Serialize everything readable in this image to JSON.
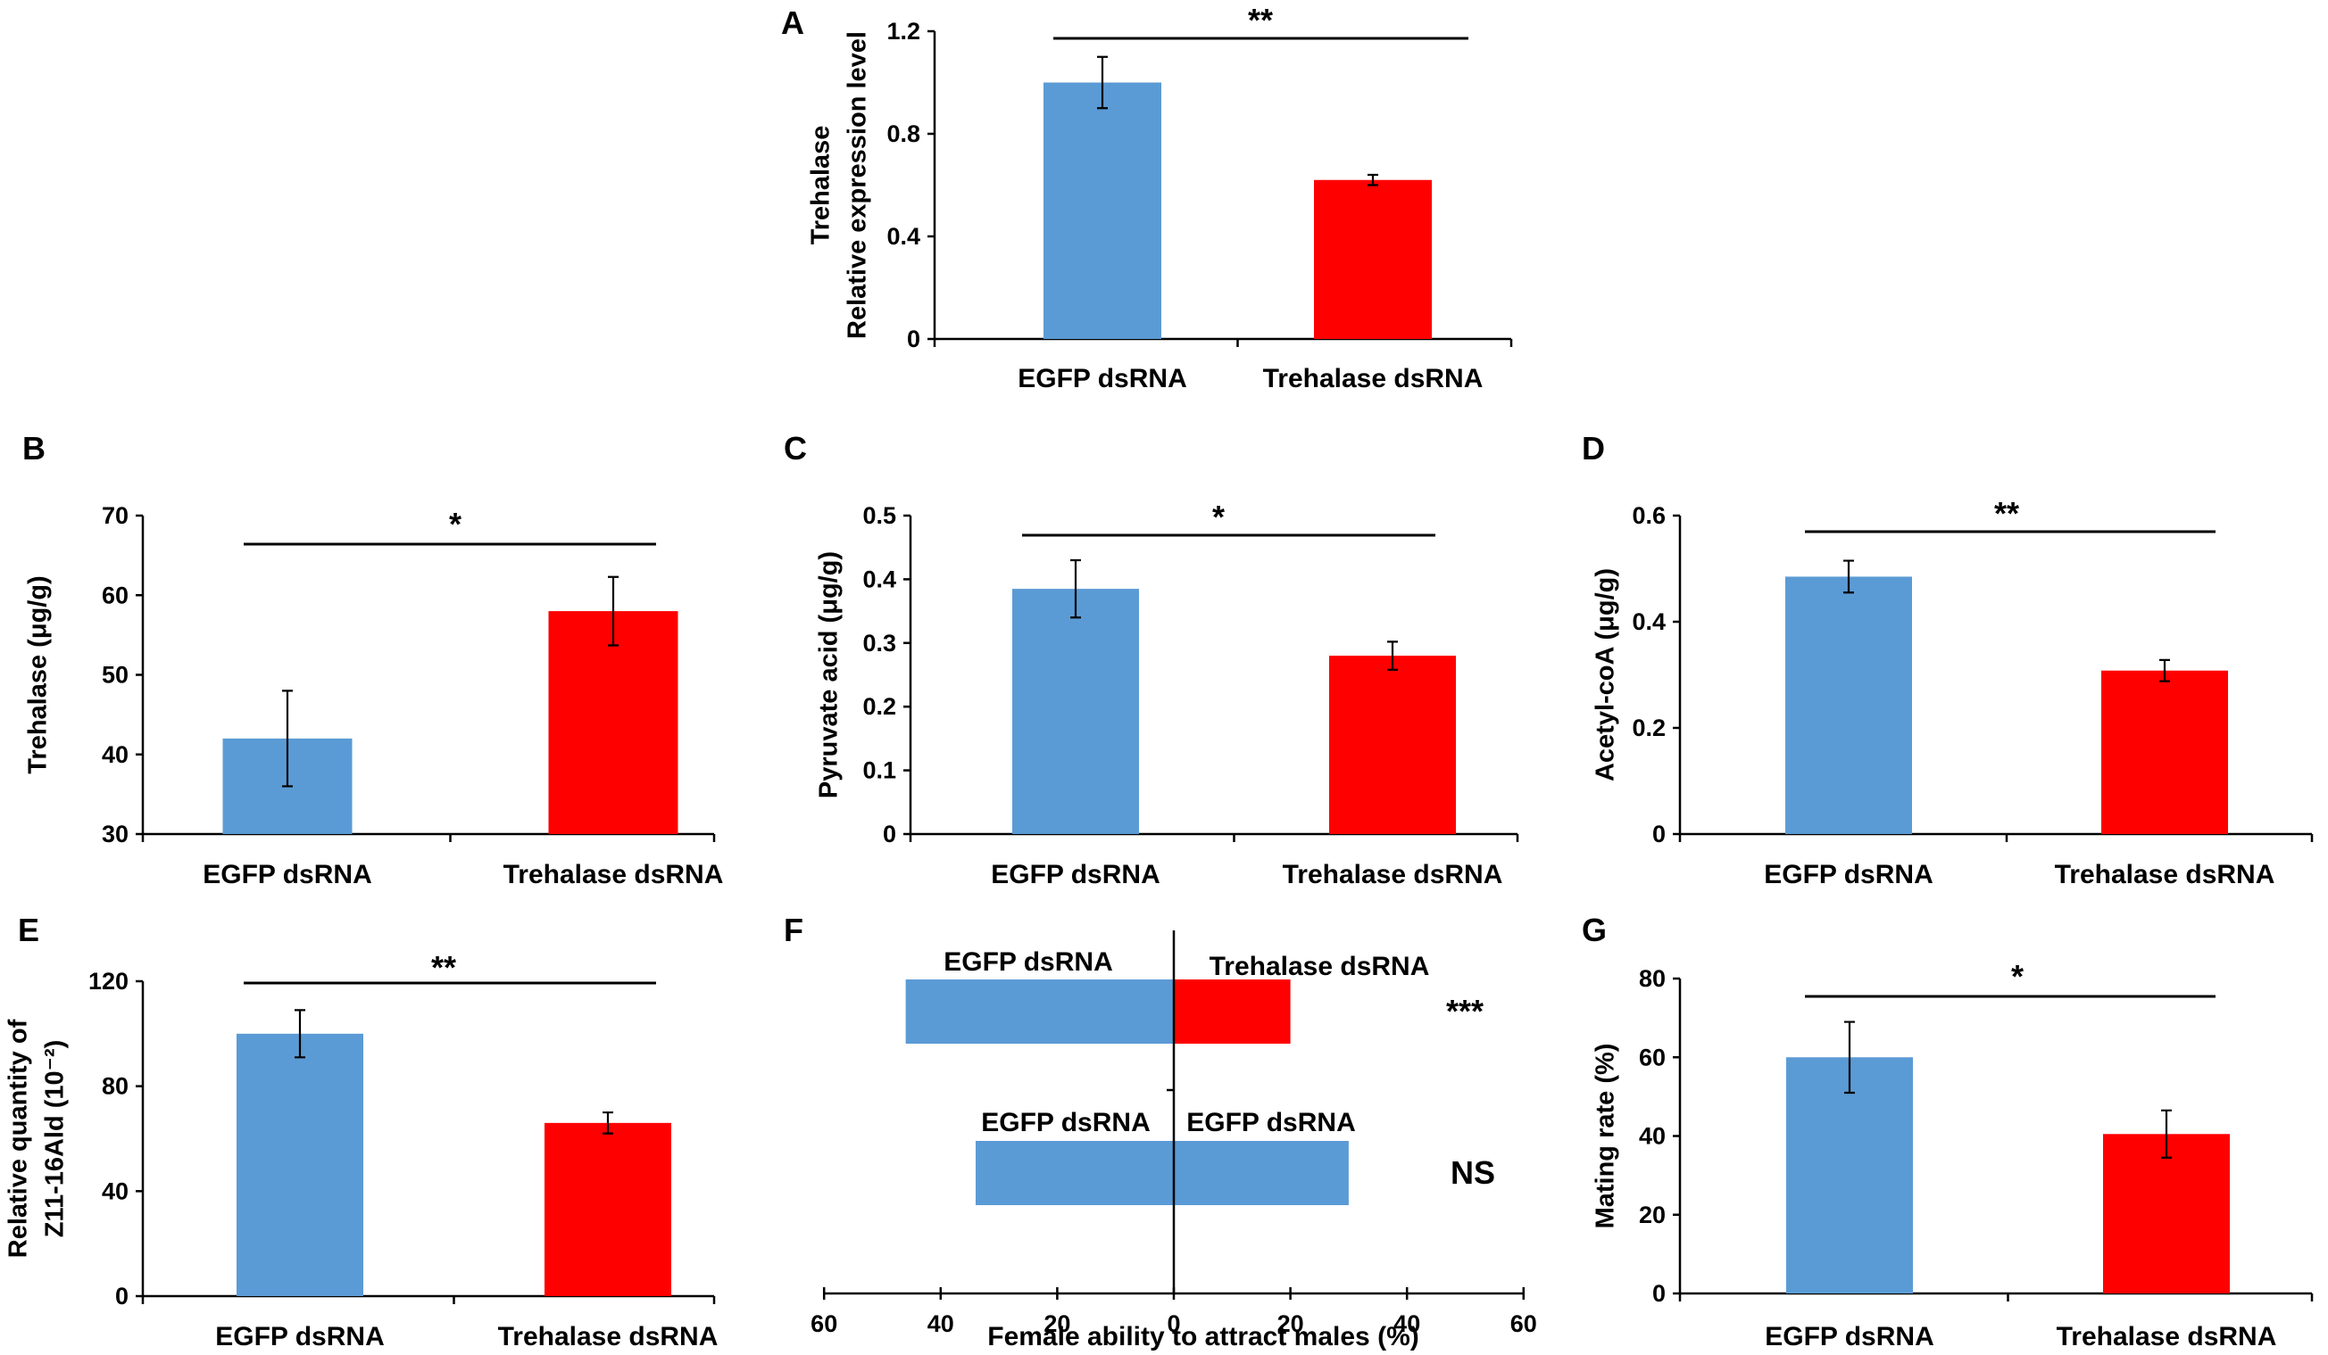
{
  "colors": {
    "control": "#5b9bd5",
    "treatment": "#ff0000"
  },
  "chart_data": [
    {
      "id": "A",
      "panel_label": "A",
      "type": "bar",
      "categories": [
        "EGFP dsRNA",
        "Trehalase dsRNA"
      ],
      "values": [
        1.0,
        0.62
      ],
      "errors": [
        0.1,
        0.02
      ],
      "ylabel_lines": [
        "Trehalase",
        "Relative expression level"
      ],
      "ylim": [
        0,
        1.2
      ],
      "yticks": [
        0,
        0.4,
        0.8,
        1.2
      ],
      "ytick_labels": [
        "0",
        "0.4",
        "0.8",
        "1.2"
      ],
      "significance": "**"
    },
    {
      "id": "B",
      "panel_label": "B",
      "type": "bar",
      "categories": [
        "EGFP dsRNA",
        "Trehalase dsRNA"
      ],
      "values": [
        42,
        58
      ],
      "errors": [
        6,
        4.3
      ],
      "ylabel_lines": [
        "Trehalase (μg/g)"
      ],
      "ylim": [
        30,
        70
      ],
      "yticks": [
        30,
        40,
        50,
        60,
        70
      ],
      "ytick_labels": [
        "30",
        "40",
        "50",
        "60",
        "70"
      ],
      "significance": "*"
    },
    {
      "id": "C",
      "panel_label": "C",
      "type": "bar",
      "categories": [
        "EGFP dsRNA",
        "Trehalase dsRNA"
      ],
      "values": [
        0.385,
        0.28
      ],
      "errors": [
        0.045,
        0.022
      ],
      "ylabel_lines": [
        "Pyruvate acid (μg/g)"
      ],
      "ylim": [
        0,
        0.5
      ],
      "yticks": [
        0,
        0.1,
        0.2,
        0.3,
        0.4,
        0.5
      ],
      "ytick_labels": [
        "0",
        "0.1",
        "0.2",
        "0.3",
        "0.4",
        "0.5"
      ],
      "significance": "*"
    },
    {
      "id": "D",
      "panel_label": "D",
      "type": "bar",
      "categories": [
        "EGFP dsRNA",
        "Trehalase dsRNA"
      ],
      "values": [
        0.485,
        0.308
      ],
      "errors": [
        0.03,
        0.02
      ],
      "ylabel_lines": [
        "Acetyl-coA (μg/g)"
      ],
      "ylim": [
        0,
        0.6
      ],
      "yticks": [
        0,
        0.2,
        0.4,
        0.6
      ],
      "ytick_labels": [
        "0",
        "0.2",
        "0.4",
        "0.6"
      ],
      "significance": "**"
    },
    {
      "id": "E",
      "panel_label": "E",
      "type": "bar",
      "categories": [
        "EGFP dsRNA",
        "Trehalase dsRNA"
      ],
      "values": [
        100,
        66
      ],
      "errors": [
        9,
        4
      ],
      "ylabel_lines": [
        "Relative quantity of",
        "Z11-16Ald (10⁻²)"
      ],
      "ylim": [
        0,
        120
      ],
      "yticks": [
        0,
        40,
        80,
        120
      ],
      "ytick_labels": [
        "0",
        "40",
        "80",
        "120"
      ],
      "significance": "**"
    },
    {
      "id": "F",
      "panel_label": "F",
      "type": "bar",
      "orientation": "horizontal",
      "xlabel": "Female ability to attract males (%)",
      "xlim": [
        -60,
        60
      ],
      "xticks": [
        -60,
        -40,
        -20,
        0,
        20,
        40,
        60
      ],
      "xtick_labels": [
        "60",
        "40",
        "20",
        "0",
        "20",
        "40",
        "60"
      ],
      "rows": [
        {
          "left_label": "EGFP dsRNA",
          "right_label": "Trehalase dsRNA",
          "left_value": 46,
          "right_value": 20,
          "significance": "***"
        },
        {
          "left_label": "EGFP dsRNA",
          "right_label": "EGFP dsRNA",
          "left_value": 34,
          "right_value": 30,
          "significance": "NS"
        }
      ]
    },
    {
      "id": "G",
      "panel_label": "G",
      "type": "bar",
      "categories": [
        "EGFP dsRNA",
        "Trehalase dsRNA"
      ],
      "values": [
        60,
        40.5
      ],
      "errors": [
        9,
        6
      ],
      "ylabel_lines": [
        "Mating rate (%)"
      ],
      "ylim": [
        0,
        80
      ],
      "yticks": [
        0,
        20,
        40,
        60,
        80
      ],
      "ytick_labels": [
        "0",
        "20",
        "40",
        "60",
        "80"
      ],
      "significance": "*"
    }
  ]
}
